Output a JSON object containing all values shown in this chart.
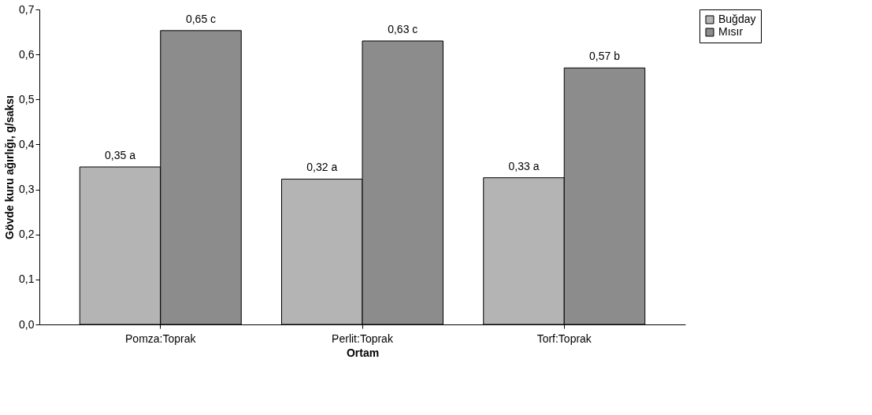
{
  "chart_data": {
    "type": "bar",
    "xlabel": "Ortam",
    "ylabel": "Gövde kuru ağırlığı, g/saksı",
    "categories": [
      "Pomza:Toprak",
      "Perlit:Toprak",
      "Torf:Toprak"
    ],
    "series": [
      {
        "name": "Buğday",
        "color": "#b4b4b4",
        "values": [
          0.35,
          0.323,
          0.326
        ],
        "value_labels": [
          "0,35 a",
          "0,32 a",
          "0,33 a"
        ]
      },
      {
        "name": "Mısır",
        "color": "#8c8c8c",
        "values": [
          0.653,
          0.63,
          0.57
        ],
        "value_labels": [
          "0,65 c",
          "0,63 c",
          "0,57 b"
        ]
      }
    ],
    "ylim": [
      0,
      0.7
    ],
    "yticks": [
      {
        "value": 0,
        "label": "0,0"
      },
      {
        "value": 0.1,
        "label": "0,1"
      },
      {
        "value": 0.2,
        "label": "0,2"
      },
      {
        "value": 0.3,
        "label": "0,3"
      },
      {
        "value": 0.4,
        "label": "0,4"
      },
      {
        "value": 0.5,
        "label": "0,5"
      },
      {
        "value": 0.6,
        "label": "0,6"
      },
      {
        "value": 0.7,
        "label": "0,7"
      }
    ],
    "grid": false,
    "legend": "right"
  }
}
